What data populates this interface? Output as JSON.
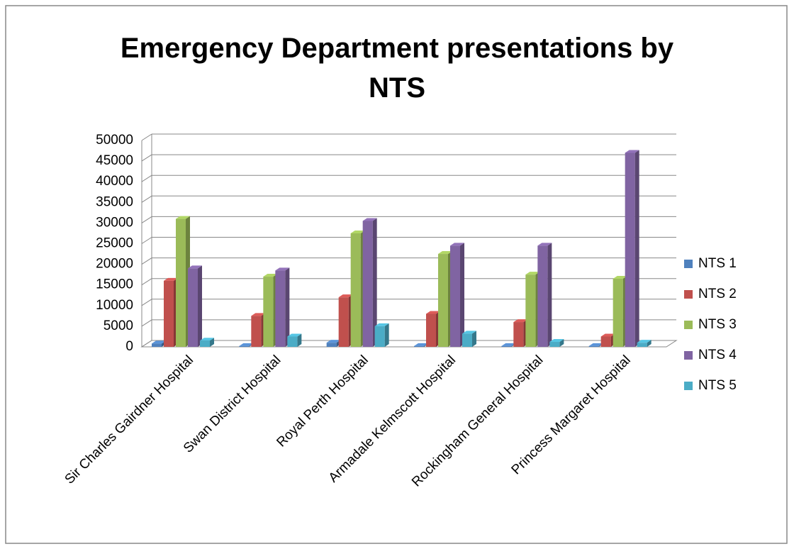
{
  "chart_data": {
    "type": "bar3d",
    "title": "Emergency Department presentations by NTS",
    "categories": [
      "Sir Charles Gairdner Hospital",
      "Swan District Hospital",
      "Royal Perth Hospital",
      "Armadale Kelmscott Hospital",
      "Rockingham General Hospital",
      "Princess Margaret Hospital"
    ],
    "series": [
      {
        "name": "NTS 1",
        "color": "#4f81bd",
        "values": [
          800,
          200,
          1000,
          200,
          200,
          200
        ]
      },
      {
        "name": "NTS 2",
        "color": "#c0504d",
        "values": [
          16000,
          7500,
          12000,
          8000,
          6000,
          2500
        ]
      },
      {
        "name": "NTS 3",
        "color": "#9bbb59",
        "values": [
          31000,
          17000,
          27500,
          22500,
          17500,
          16500
        ]
      },
      {
        "name": "NTS 4",
        "color": "#8064a2",
        "values": [
          19000,
          18500,
          30500,
          24500,
          24500,
          47000
        ]
      },
      {
        "name": "NTS 5",
        "color": "#4bacc6",
        "values": [
          1500,
          2500,
          5000,
          3200,
          1200,
          1000
        ]
      }
    ],
    "ylim": [
      0,
      50000
    ],
    "yticks": [
      0,
      5000,
      10000,
      15000,
      20000,
      25000,
      30000,
      35000,
      40000,
      45000,
      50000
    ],
    "grid": true,
    "legend": "right"
  }
}
